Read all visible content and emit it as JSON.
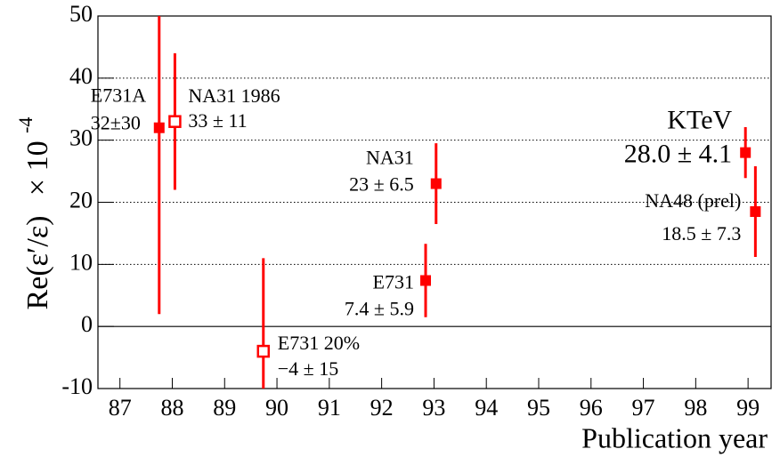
{
  "chart_data": {
    "type": "scatter",
    "ylabel": "Re(ε′/ε)",
    "ylabel_factor": "× 10",
    "ylabel_exponent": "-4",
    "xlabel": "Publication year",
    "xlim": [
      86.58,
      99.44
    ],
    "xticks": [
      87,
      88,
      89,
      90,
      91,
      92,
      93,
      94,
      95,
      96,
      97,
      98,
      99
    ],
    "ylim": [
      -10,
      50
    ],
    "yticks": [
      -10,
      0,
      10,
      20,
      30,
      40,
      50
    ],
    "grid": true,
    "zero_line": true,
    "color": "#ff0000",
    "points": [
      {
        "name": "E731A",
        "x": 87.75,
        "y": 32,
        "err": 30,
        "label": "32±30",
        "filled": true
      },
      {
        "name": "NA31 1986",
        "x": 88.05,
        "y": 33,
        "err": 11,
        "label": "33 ± 11",
        "filled": false
      },
      {
        "name": "E731 20%",
        "x": 89.74,
        "y": -4,
        "err": 15,
        "label": "−4 ± 15",
        "filled": false
      },
      {
        "name": "E731",
        "x": 92.84,
        "y": 7.4,
        "err": 5.9,
        "label": "7.4 ± 5.9",
        "filled": true
      },
      {
        "name": "NA31",
        "x": 93.04,
        "y": 23,
        "err": 6.5,
        "label": "23 ± 6.5",
        "filled": true
      },
      {
        "name": "KTeV",
        "x": 98.95,
        "y": 28.0,
        "err": 4.1,
        "label": "28.0 ± 4.1",
        "filled": true
      },
      {
        "name": "NA48 (prel)",
        "x": 99.14,
        "y": 18.5,
        "err": 7.3,
        "label": "18.5 ± 7.3",
        "filled": true
      }
    ]
  }
}
